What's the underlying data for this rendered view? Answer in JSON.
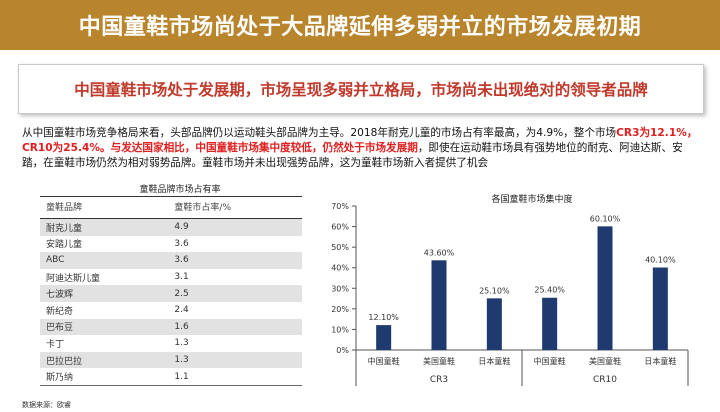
{
  "title": "中国童鞋市场尚处于大品牌延伸多弱并立的市场发展初期",
  "subtitle": "中国童鞋市场处于发展期，市场呈现多弱并立格局，市场尚未出现绝对的领导者品牌",
  "paragraph": {
    "p1": "从中国童鞋市场竞争格局来看，头部品牌仍以运动鞋头部品牌为主导。2018年耐克儿童的市场占有率最高，为4.9%，整个市场",
    "p2": "CR3为12.1%，CR10为25.4%。与发达国家相比，中国童鞋市场集中度较低，仍然处于市场发展期",
    "p3": "，即使在运动鞋市场具有强势地位的耐克、阿迪达斯、安踏，在童鞋市场仍然为相对弱势品牌。童鞋市场并未出现强势品牌，这为童鞋市场新入者提供了机会"
  },
  "table": {
    "title": "童鞋品牌市场占有率",
    "headers": [
      "童鞋品牌",
      "童鞋市占率/%"
    ],
    "rows": [
      {
        "brand": "耐克儿童",
        "share": "4.9"
      },
      {
        "brand": "安踏儿童",
        "share": "3.6"
      },
      {
        "brand": "ABC",
        "share": "3.6"
      },
      {
        "brand": "阿迪达斯儿童",
        "share": "3.1"
      },
      {
        "brand": "七波辉",
        "share": "2.5"
      },
      {
        "brand": "新纪奇",
        "share": "2.4"
      },
      {
        "brand": "巴布豆",
        "share": "1.6"
      },
      {
        "brand": "卡丁",
        "share": "1.3"
      },
      {
        "brand": "巴拉巴拉",
        "share": "1.3"
      },
      {
        "brand": "斯乃纳",
        "share": "1.1"
      }
    ]
  },
  "source": "数据来源：欧睿",
  "chart_data": {
    "type": "bar",
    "title": "各国童鞋市场集中度",
    "groups": [
      {
        "name": "CR3",
        "categories": [
          "中国童鞋",
          "美国童鞋",
          "日本童鞋"
        ],
        "values": [
          12.1,
          43.6,
          25.1
        ],
        "labels": [
          "12.10%",
          "43.60%",
          "25.10%"
        ]
      },
      {
        "name": "CR10",
        "categories": [
          "中国童鞋",
          "美国童鞋",
          "日本童鞋"
        ],
        "values": [
          25.4,
          60.1,
          40.1
        ],
        "labels": [
          "25.40%",
          "60.10%",
          "40.10%"
        ]
      }
    ],
    "yticks": [
      "0%",
      "10%",
      "20%",
      "30%",
      "40%",
      "50%",
      "60%",
      "70%"
    ],
    "ylim": [
      0,
      70
    ],
    "bar_color": "#1f3a6e",
    "grid": false
  },
  "colors": {
    "title_bar": "#b8842c",
    "subtitle_text": "#c0392b",
    "highlight_text": "#e02020"
  }
}
